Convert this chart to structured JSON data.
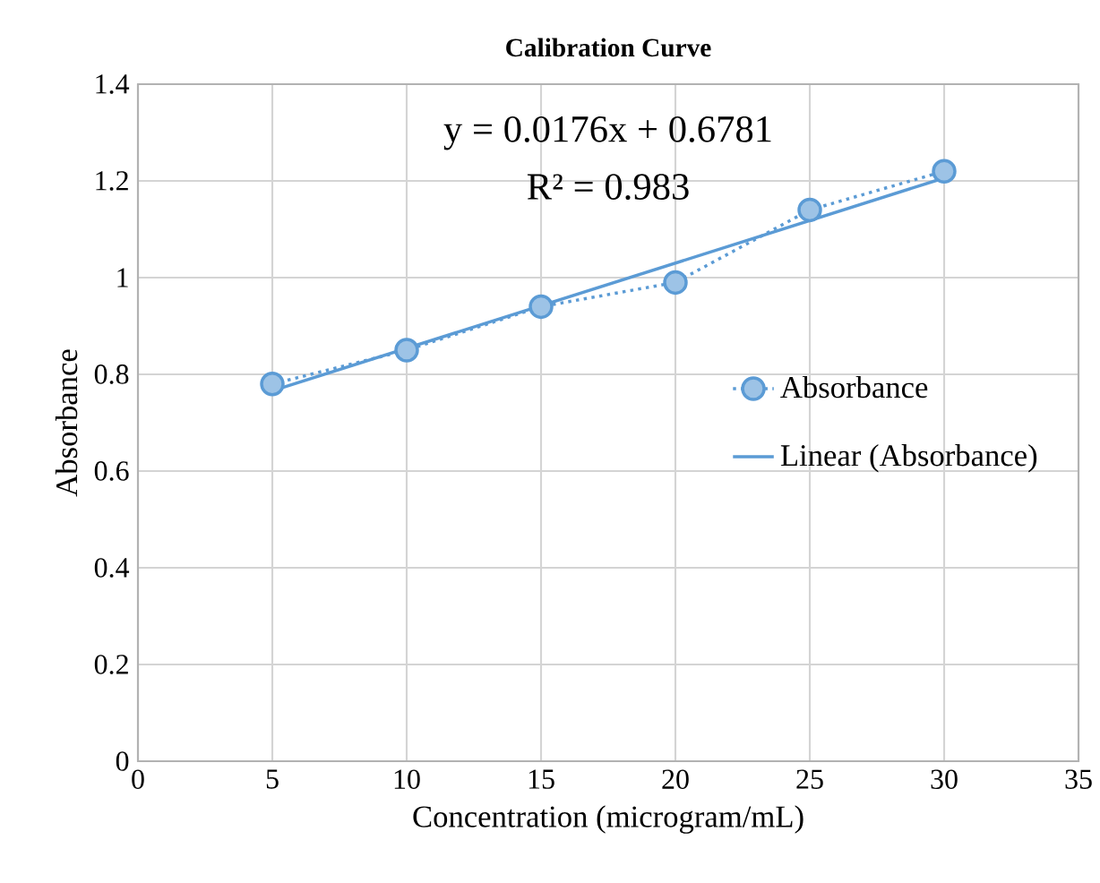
{
  "chart_data": {
    "type": "line",
    "title": "Calibration  Curve",
    "xlabel": "Concentration (microgram/mL)",
    "ylabel": "Absorbance",
    "x": [
      5,
      10,
      15,
      20,
      25,
      30
    ],
    "series": [
      {
        "name": "Absorbance",
        "color": "#5b9bd5",
        "values": [
          0.78,
          0.85,
          0.94,
          0.99,
          1.14,
          1.22
        ],
        "marker": "circle",
        "line_style": "dotted"
      },
      {
        "name": "Linear (Absorbance)",
        "type": "line",
        "color": "#5b9bd5",
        "x": [
          5,
          30
        ],
        "values": [
          0.766,
          1.206
        ],
        "marker": "none",
        "line_style": "solid"
      }
    ],
    "annotations": [
      "y = 0.0176x + 0.6781",
      "R² = 0.983"
    ],
    "xlim": [
      0,
      35
    ],
    "ylim": [
      0,
      1.4
    ],
    "xticks": [
      0,
      5,
      10,
      15,
      20,
      25,
      30,
      35
    ],
    "yticks": [
      0,
      0.2,
      0.4,
      0.6,
      0.8,
      1,
      1.2,
      1.4
    ],
    "grid": true,
    "legend": "right"
  }
}
